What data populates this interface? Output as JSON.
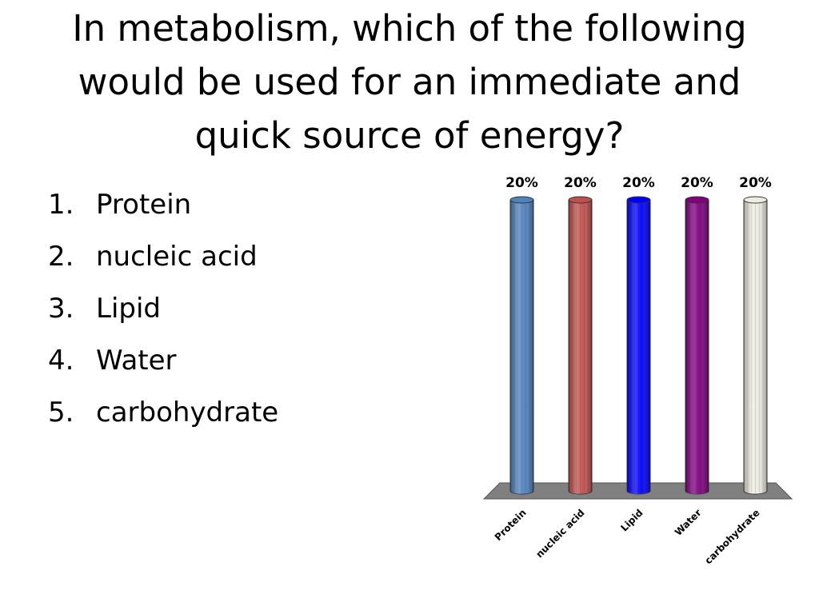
{
  "slide": {
    "title": "In metabolism, which of the following would be used for an immediate and quick source of energy?"
  },
  "answers": [
    {
      "number": "1.",
      "label": "Protein"
    },
    {
      "number": "2.",
      "label": "nucleic acid"
    },
    {
      "number": "3.",
      "label": "Lipid"
    },
    {
      "number": "4.",
      "label": "Water"
    },
    {
      "number": "5.",
      "label": "carbohydrate"
    }
  ],
  "chart_data": {
    "type": "bar",
    "style": "3d-cylinder",
    "categories": [
      "Protein",
      "nucleic acid",
      "Lipid",
      "Water",
      "carbohydrate"
    ],
    "values": [
      20,
      20,
      20,
      20,
      20
    ],
    "value_labels": [
      "20%",
      "20%",
      "20%",
      "20%",
      "20%"
    ],
    "unit": "%",
    "ylim": [
      0,
      20
    ],
    "grid": false,
    "legend": "none",
    "floor_color": "#808080",
    "colors": [
      "#4f81bd",
      "#c0504d",
      "#0000ff",
      "#800080",
      "#eeece1"
    ]
  }
}
